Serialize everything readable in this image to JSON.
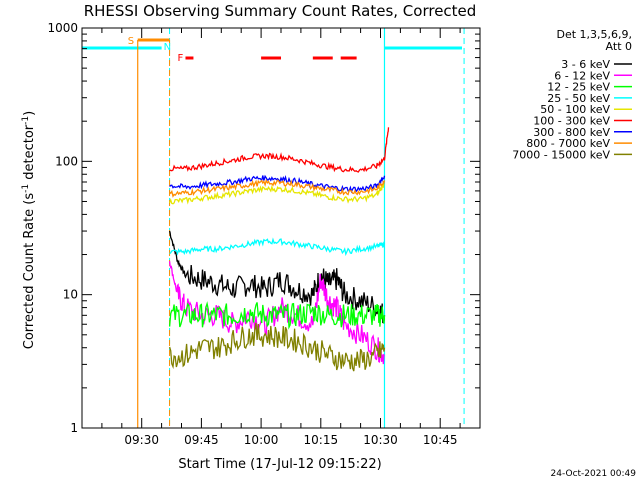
{
  "chart_data": {
    "type": "line",
    "title": "RHESSI Observing Summary Count Rates, Corrected",
    "xlabel": "Start Time (17-Jul-12 09:15:22)",
    "ylabel": "Corrected Count Rate (s",
    "ylabel_sup1": "-1",
    "ylabel_mid": " detector",
    "ylabel_sup2": "-1",
    "ylabel_end": ")",
    "footer": "24-Oct-2021 00:49",
    "yscale": "log",
    "ylim": [
      1,
      1000
    ],
    "xlim_minutes": [
      0,
      100
    ],
    "x_ticks": [
      {
        "m": 15,
        "label": "09:30"
      },
      {
        "m": 30,
        "label": "09:45"
      },
      {
        "m": 45,
        "label": "10:00"
      },
      {
        "m": 60,
        "label": "10:15"
      },
      {
        "m": 75,
        "label": "10:30"
      },
      {
        "m": 90,
        "label": "10:45"
      }
    ],
    "y_ticks": [
      {
        "v": 1,
        "label": "1"
      },
      {
        "v": 10,
        "label": "10"
      },
      {
        "v": 100,
        "label": "100"
      },
      {
        "v": 1000,
        "label": "1000"
      }
    ],
    "legend_title_1": "Det 1,3,5,6,9,",
    "legend_title_2": "Att 0",
    "series": [
      {
        "name": "3 - 6 keV",
        "color": "#000000",
        "x": [
          22,
          24,
          26,
          30,
          34,
          38,
          42,
          46,
          50,
          54,
          58,
          60,
          62,
          64,
          66,
          70,
          74,
          76
        ],
        "y": [
          30,
          18,
          14,
          13,
          12,
          11,
          12,
          11,
          13,
          11,
          10,
          14,
          12,
          13,
          10,
          9,
          8,
          7
        ]
      },
      {
        "name": "6 - 12 keV",
        "color": "#ff00ff",
        "x": [
          22,
          24,
          26,
          30,
          34,
          38,
          42,
          46,
          50,
          54,
          58,
          60,
          62,
          64,
          66,
          70,
          74,
          76
        ],
        "y": [
          18,
          10,
          8,
          7,
          7,
          6,
          7,
          6,
          8,
          7,
          6,
          13,
          9,
          8,
          6,
          5,
          4,
          3.5
        ]
      },
      {
        "name": "12 - 25 keV",
        "color": "#00ff00",
        "x": [
          22,
          26,
          30,
          34,
          38,
          42,
          46,
          50,
          54,
          58,
          62,
          66,
          70,
          74,
          76
        ],
        "y": [
          7,
          7,
          7,
          7,
          7,
          7.5,
          7,
          7,
          7,
          7.5,
          7,
          7,
          7,
          7,
          7
        ]
      },
      {
        "name": "25 - 50 keV",
        "color": "#00ffff",
        "x": [
          22,
          26,
          30,
          34,
          38,
          42,
          46,
          50,
          54,
          58,
          62,
          66,
          70,
          74,
          76
        ],
        "y": [
          21,
          21,
          22,
          22,
          23,
          24,
          25,
          25,
          24,
          23,
          22,
          21,
          22,
          23,
          24
        ]
      },
      {
        "name": "50 - 100 keV",
        "color": "#e6e600",
        "x": [
          22,
          26,
          30,
          34,
          38,
          42,
          46,
          50,
          54,
          58,
          62,
          66,
          70,
          74,
          76
        ],
        "y": [
          50,
          51,
          53,
          55,
          57,
          60,
          62,
          62,
          60,
          57,
          54,
          52,
          52,
          56,
          68
        ]
      },
      {
        "name": "100 - 300 keV",
        "color": "#ff0000",
        "x": [
          22,
          26,
          30,
          34,
          38,
          42,
          46,
          50,
          54,
          58,
          62,
          66,
          70,
          74,
          76,
          77
        ],
        "y": [
          88,
          88,
          92,
          97,
          102,
          108,
          110,
          108,
          103,
          96,
          91,
          87,
          86,
          92,
          105,
          180
        ]
      },
      {
        "name": "300 - 800 keV",
        "color": "#0000ff",
        "x": [
          22,
          26,
          30,
          34,
          38,
          42,
          46,
          50,
          54,
          58,
          62,
          66,
          70,
          74,
          76
        ],
        "y": [
          66,
          64,
          66,
          68,
          70,
          74,
          75,
          74,
          71,
          67,
          64,
          62,
          62,
          65,
          78
        ]
      },
      {
        "name": "800 - 7000 keV",
        "color": "#ff8c00",
        "x": [
          22,
          26,
          30,
          34,
          38,
          42,
          46,
          50,
          54,
          58,
          62,
          66,
          70,
          74,
          76
        ],
        "y": [
          57,
          58,
          60,
          62,
          64,
          67,
          69,
          69,
          67,
          64,
          61,
          59,
          59,
          62,
          72
        ]
      },
      {
        "name": "7000 - 15000 keV",
        "color": "#808000",
        "x": [
          22,
          26,
          30,
          34,
          38,
          42,
          46,
          50,
          54,
          58,
          62,
          66,
          70,
          74,
          76
        ],
        "y": [
          3.5,
          3.5,
          4,
          4,
          4.5,
          5,
          5,
          4.8,
          4.5,
          4,
          3.5,
          3.2,
          3.2,
          3.5,
          4
        ]
      }
    ],
    "annotations": {
      "S_label": "S",
      "N_label": "N",
      "F_label": "F",
      "saa_bar_color": "#ff8c00",
      "night_color": "#00ffff",
      "flare_color": "#ff0000",
      "saa_minutes": [
        14,
        22
      ],
      "night_start_minutes": [
        20,
        76
      ],
      "night_end_minutes": [
        22,
        96
      ],
      "flare_segments": [
        [
          26,
          28
        ],
        [
          45,
          50
        ],
        [
          58,
          63
        ],
        [
          65,
          69
        ]
      ]
    }
  }
}
